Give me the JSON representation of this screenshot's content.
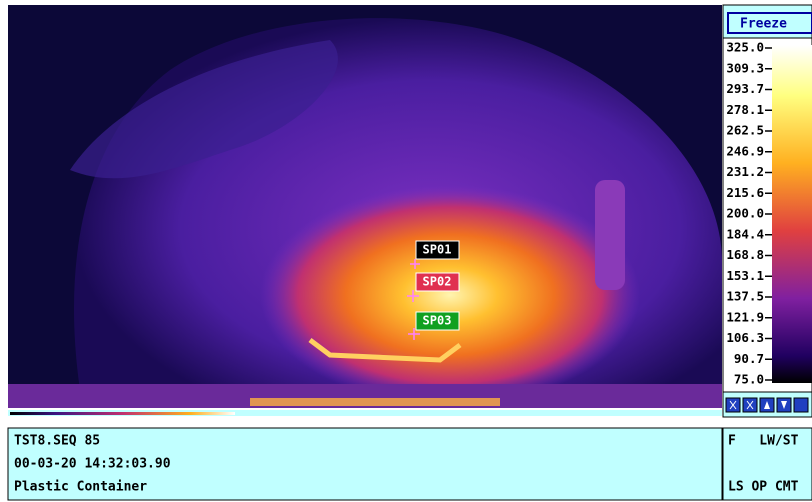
{
  "toolbar": {
    "freeze_button": "Freeze"
  },
  "scale": {
    "labels": [
      "325.0",
      "309.3",
      "293.7",
      "278.1",
      "262.5",
      "246.9",
      "231.2",
      "215.6",
      "200.0",
      "184.4",
      "168.8",
      "153.1",
      "137.5",
      "121.9",
      "106.3",
      "90.7",
      "75.0"
    ]
  },
  "spots": [
    "SP01",
    "SP02",
    "SP03"
  ],
  "info": {
    "lines": [
      "TST8.SEQ 85",
      "00-03-20 14:32:03.90",
      "Plastic Container"
    ]
  },
  "status": {
    "lines": [
      "F   LW/ST",
      "LS OP CMT"
    ]
  }
}
